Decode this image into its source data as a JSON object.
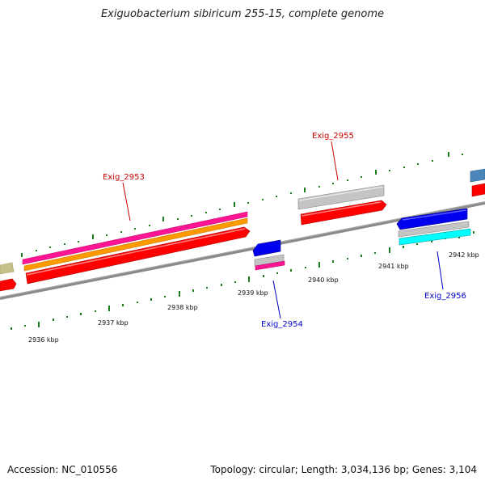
{
  "title": "Exiguobacterium sibiricum 255-15, complete genome",
  "footer": {
    "accession": "Accession: NC_010556",
    "summary": "Topology: circular; Length: 3,034,136 bp; Genes: 3,104"
  },
  "kbp_labels": [
    "2936 kbp",
    "2937 kbp",
    "2938 kbp",
    "2939 kbp",
    "2940 kbp",
    "2941 kbp",
    "2942 kbp"
  ],
  "gene_labels": {
    "top": [
      "Exig_2953",
      "Exig_2955"
    ],
    "bottom": [
      "Exig_2954",
      "Exig_2956"
    ]
  },
  "colors": {
    "top_label": "#cc0000",
    "bottom_label": "#0000cc",
    "backbone": "#8a8a8a",
    "tick": "#1e7a1e",
    "red": "#ff0000",
    "orange": "#ff9900",
    "magenta": "#ff1493",
    "gray": "#c4c4c4",
    "blue": "#0000ee",
    "cyan": "#00ffff",
    "olive": "#c8c08a",
    "steelblue": "#4a86b8"
  }
}
